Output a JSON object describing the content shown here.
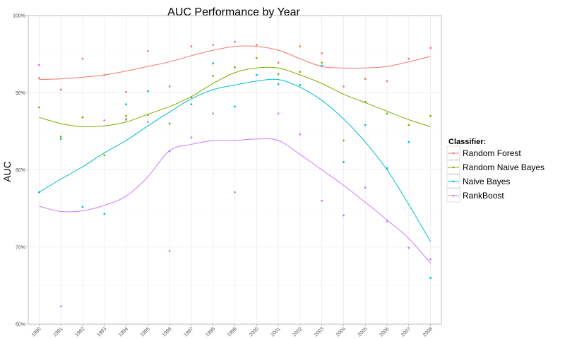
{
  "chart_data": {
    "type": "scatter",
    "title": "AUC Performance by Year",
    "xlabel": "",
    "ylabel": "AUC",
    "x": [
      "1990",
      "1991",
      "1992",
      "1993",
      "1994",
      "1995",
      "1996",
      "1997",
      "1998",
      "1999",
      "2000",
      "2001",
      "2002",
      "2003",
      "2004",
      "2005",
      "2006",
      "2007",
      "2008"
    ],
    "ylim": [
      0.6,
      1.0
    ],
    "yticks": [
      0.6,
      0.7,
      0.8,
      0.9,
      1.0
    ],
    "ytick_labels": [
      "60%",
      "70%",
      "80%",
      "90%",
      "100%"
    ],
    "grid": true,
    "legend": {
      "title": "Classifier:",
      "position": "right"
    },
    "series": [
      {
        "name": "Random Forest",
        "color": "#F8766D",
        "points": [
          [
            0,
            0.919
          ],
          [
            0,
            0.936
          ],
          [
            1,
            0.904
          ],
          [
            2,
            0.944
          ],
          [
            3,
            0.923
          ],
          [
            4,
            0.901
          ],
          [
            5,
            0.954
          ],
          [
            6,
            0.908
          ],
          [
            7,
            0.96
          ],
          [
            8,
            0.962
          ],
          [
            9,
            0.966
          ],
          [
            10,
            0.962
          ],
          [
            11,
            0.939
          ],
          [
            12,
            0.96
          ],
          [
            13,
            0.951
          ],
          [
            14,
            0.908
          ],
          [
            15,
            0.918
          ],
          [
            16,
            0.915
          ],
          [
            17,
            0.944
          ],
          [
            18,
            0.958
          ]
        ],
        "smooth": [
          0.917,
          0.918,
          0.92,
          0.923,
          0.928,
          0.934,
          0.94,
          0.948,
          0.955,
          0.96,
          0.96,
          0.955,
          0.944,
          0.934,
          0.932,
          0.932,
          0.934,
          0.94,
          0.947
        ]
      },
      {
        "name": "Random Naive Bayes",
        "color": "#7CAE00",
        "points": [
          [
            0,
            0.881
          ],
          [
            1,
            0.843
          ],
          [
            2,
            0.868
          ],
          [
            3,
            0.819
          ],
          [
            4,
            0.87
          ],
          [
            4,
            0.866
          ],
          [
            5,
            0.871
          ],
          [
            6,
            0.86
          ],
          [
            7,
            0.894
          ],
          [
            8,
            0.922
          ],
          [
            9,
            0.933
          ],
          [
            10,
            0.945
          ],
          [
            11,
            0.924
          ],
          [
            12,
            0.927
          ],
          [
            13,
            0.939
          ],
          [
            14,
            0.838
          ],
          [
            15,
            0.888
          ],
          [
            16,
            0.873
          ],
          [
            17,
            0.858
          ],
          [
            18,
            0.87
          ]
        ],
        "smooth": [
          0.868,
          0.86,
          0.856,
          0.857,
          0.862,
          0.872,
          0.882,
          0.895,
          0.912,
          0.926,
          0.932,
          0.932,
          0.923,
          0.912,
          0.898,
          0.887,
          0.876,
          0.865,
          0.856
        ]
      },
      {
        "name": "Naive Bayes",
        "color": "#00BFC4",
        "points": [
          [
            0,
            0.771
          ],
          [
            1,
            0.84
          ],
          [
            2,
            0.752
          ],
          [
            3,
            0.743
          ],
          [
            4,
            0.885
          ],
          [
            5,
            0.902
          ],
          [
            6,
            0.824
          ],
          [
            7,
            0.885
          ],
          [
            8,
            0.938
          ],
          [
            9,
            0.882
          ],
          [
            10,
            0.923
          ],
          [
            11,
            0.911
          ],
          [
            12,
            0.91
          ],
          [
            13,
            0.935
          ],
          [
            14,
            0.81
          ],
          [
            15,
            0.858
          ],
          [
            16,
            0.802
          ],
          [
            17,
            0.836
          ],
          [
            18,
            0.66
          ]
        ],
        "smooth": [
          0.771,
          0.788,
          0.804,
          0.822,
          0.838,
          0.857,
          0.875,
          0.892,
          0.904,
          0.91,
          0.915,
          0.917,
          0.907,
          0.89,
          0.866,
          0.836,
          0.8,
          0.755,
          0.707
        ]
      },
      {
        "name": "RankBoost",
        "color": "#C77CFF",
        "points": [
          [
            0,
            0.936
          ],
          [
            1,
            0.623
          ],
          [
            3,
            0.864
          ],
          [
            4,
            0.865
          ],
          [
            5,
            0.862
          ],
          [
            6,
            0.695
          ],
          [
            6,
            0.824
          ],
          [
            7,
            0.842
          ],
          [
            8,
            0.873
          ],
          [
            9,
            0.771
          ],
          [
            11,
            0.873
          ],
          [
            12,
            0.846
          ],
          [
            13,
            0.76
          ],
          [
            14,
            0.741
          ],
          [
            15,
            0.777
          ],
          [
            16,
            0.733
          ],
          [
            17,
            0.699
          ],
          [
            18,
            0.684
          ]
        ],
        "smooth": [
          0.753,
          0.746,
          0.747,
          0.754,
          0.766,
          0.791,
          0.825,
          0.833,
          0.838,
          0.838,
          0.84,
          0.838,
          0.82,
          0.8,
          0.78,
          0.758,
          0.735,
          0.711,
          0.679
        ]
      }
    ]
  }
}
